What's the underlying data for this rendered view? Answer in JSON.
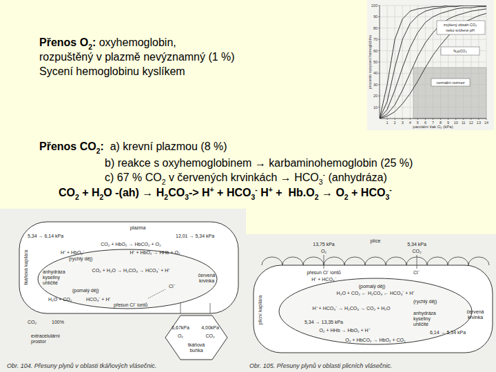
{
  "slide": {
    "o2_lines": [
      [
        {
          "text": "Přenos O",
          "bold": true
        },
        {
          "text": "2",
          "bold": true,
          "sub": true
        },
        {
          "text": ":",
          "bold": true
        },
        {
          "text": " oxyhemoglobin,"
        }
      ],
      [
        {
          "text": "rozpuštěný v plazmě nevýznamný (1 %)"
        }
      ],
      [
        {
          "text": "Sycení hemoglobinu kyslíkem"
        }
      ]
    ],
    "co2_lines": [
      [
        {
          "text": "Přenos CO",
          "bold": true
        },
        {
          "text": "2",
          "bold": true,
          "sub": true
        },
        {
          "text": ":",
          "bold": true
        },
        {
          "text": "  a) krevní plazmou (8 %)"
        }
      ],
      [
        {
          "text": "b) reakce s oxyhemoglobinem → karbaminohemoglobin (25 %)"
        }
      ],
      [
        {
          "text": "c) 67 % CO"
        },
        {
          "text": "2",
          "sub": true
        },
        {
          "text": " v červených krvinkách → HCO"
        },
        {
          "text": "3",
          "sub": true
        },
        {
          "text": "-",
          "sup": true
        },
        {
          "text": " (anhydráza)"
        }
      ],
      [
        {
          "text": "CO",
          "bold": true
        },
        {
          "text": "2",
          "bold": true,
          "sub": true
        },
        {
          "text": " + H",
          "bold": true
        },
        {
          "text": "2",
          "bold": true,
          "sub": true
        },
        {
          "text": "O -(ah) → H",
          "bold": true
        },
        {
          "text": "2",
          "bold": true,
          "sub": true
        },
        {
          "text": "CO",
          "bold": true
        },
        {
          "text": "3",
          "bold": true,
          "sub": true
        },
        {
          "text": "-> H",
          "bold": true
        },
        {
          "text": "+",
          "bold": true,
          "sup": true
        },
        {
          "text": " + HCO",
          "bold": true
        },
        {
          "text": "3",
          "bold": true,
          "sub": true
        },
        {
          "text": "-",
          "bold": true,
          "sup": true
        },
        {
          "text": " H",
          "bold": true
        },
        {
          "text": "+",
          "bold": true,
          "sup": true
        },
        {
          "text": " +  Hb.O",
          "bold": true
        },
        {
          "text": "2",
          "bold": true,
          "sub": true
        },
        {
          "text": " → O",
          "bold": true
        },
        {
          "text": "2",
          "bold": true,
          "sub": true
        },
        {
          "text": " + HCO",
          "bold": true
        },
        {
          "text": "3",
          "bold": true,
          "sub": true
        },
        {
          "text": "-",
          "bold": true,
          "sup": true
        }
      ]
    ],
    "diagrams": [
      {
        "labels": [
          "plazma",
          "5,34 → 6,14 kPa",
          "12,01 → 5,34 kPa",
          "CO₂ + HbO₂ → HbCO₂ + O₂",
          "H⁺ + HbO₂⁻",
          "(rychlý děj)",
          "H⁺ + HbO₂ → HHb + O₂",
          "anhydráza",
          "kyseliny",
          "uhličité",
          "CO₂ + H₂O → H₂CO₃ → HCO₃⁻ + H⁺",
          "Cl⁻",
          "(pomalý děj)",
          "H₂O + CO₂",
          "HCO₃⁻ + H⁺",
          "přesun Cl⁻ iontů",
          "červená",
          "krvinka",
          "tkáňová kapilára",
          "CO₂",
          "100%",
          "extracelulární",
          "prostor",
          "6,67kPa",
          "4,00kPa",
          "O₂",
          "CO₂",
          "tkáňová",
          "buňka"
        ],
        "caption": "Obr. 104. Přesuny plynů v oblasti tkáňových vlásečnic."
      },
      {
        "labels": [
          "plíce",
          "13,75 kPa",
          "O₂",
          "5,34 kPa",
          "CO₂",
          "přesun Cl⁻ iontů",
          "H⁺ + HCO₃⁻",
          "Cl⁻",
          "(pomalý děj)",
          "H₂O + CO₂ ← H₂CO₃ ← HCO₃⁻ + H⁺",
          "(rychlý děj)",
          "H⁺ + HCO₃⁻ → H₂CO₃ → CO₂ + H₂O",
          "anhydráza",
          "kyseliny",
          "uhličité",
          "5,34 → 13,35 kPa",
          "6,14 → 5,34 kPa",
          "O₂ + HHb → HbO₂ + H⁺",
          "O₂ + HbCO₂ → HbO₂ + CO₂",
          "plicní kapilára",
          "červená",
          "krvinka"
        ],
        "caption": "Obr. 105. Přesuny plynů v oblasti plicních vlásečnic."
      }
    ]
  },
  "chart_data": {
    "type": "line",
    "x": [
      0,
      1,
      2,
      3,
      4,
      5,
      6,
      7,
      8,
      9,
      10,
      11,
      12,
      13,
      14
    ],
    "series": [
      {
        "color": "#222222",
        "values": [
          0,
          30,
          70,
          88,
          95,
          97,
          98,
          99,
          99,
          100,
          100,
          100,
          100,
          100,
          100
        ]
      },
      {
        "color": "#222222",
        "values": [
          0,
          15,
          45,
          70,
          84,
          91,
          95,
          97,
          98,
          99,
          99,
          100,
          100,
          100,
          100
        ]
      },
      {
        "color": "#222222",
        "values": [
          0,
          8,
          25,
          45,
          63,
          76,
          85,
          90,
          93,
          95,
          97,
          98,
          98,
          99,
          99
        ]
      },
      {
        "color": "#222222",
        "values": [
          0,
          4,
          12,
          25,
          40,
          55,
          67,
          76,
          83,
          88,
          91,
          93,
          95,
          96,
          97
        ]
      },
      {
        "color": "#222222",
        "values": [
          0,
          2,
          6,
          13,
          22,
          33,
          45,
          56,
          65,
          73,
          80,
          85,
          88,
          91,
          93
        ]
      }
    ],
    "xlim": [
      0,
      14
    ],
    "ylim": [
      0,
      100
    ],
    "xticks": [
      1,
      2,
      3,
      4,
      5,
      6,
      7,
      8,
      9,
      10,
      11,
      12,
      13,
      14
    ],
    "yticks": [
      10,
      20,
      30,
      40,
      50,
      60,
      70,
      80,
      90,
      100
    ],
    "grid": true,
    "xlabel": "parciální tlak O₂ (kPa)",
    "ylabel": "procento nasycení hemoglobinu",
    "annotations": [
      "zvýšený obsah CO₂",
      "nebo snížené pH",
      "N₂pCO₂",
      "normální rozmez"
    ]
  }
}
